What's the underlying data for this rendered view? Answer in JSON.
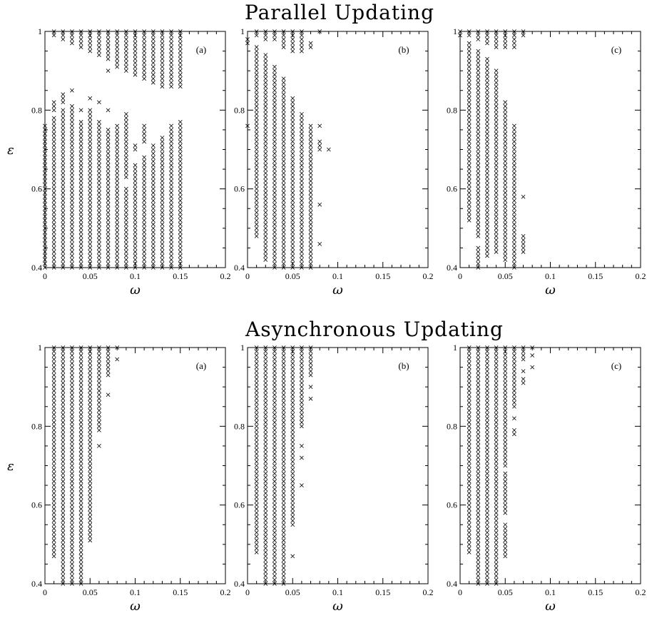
{
  "rows": [
    {
      "title": "Parallel Updating"
    },
    {
      "title": "Asynchronous Updating"
    }
  ],
  "axes": {
    "xlabel": "ω",
    "ylabel": "ε",
    "xlim": [
      0,
      0.2
    ],
    "ylim": [
      0.4,
      1.0
    ],
    "xticks": [
      0,
      0.05,
      0.1,
      0.15,
      0.2
    ],
    "xtick_labels": [
      "0",
      "0.05",
      "0.1",
      "0.15",
      "0.2"
    ],
    "yticks": [
      0.4,
      0.6,
      0.8,
      1.0
    ],
    "ytick_labels": [
      "0.4",
      "0.6",
      "0.8",
      "1"
    ]
  },
  "chart_data": [
    {
      "type": "scatter",
      "row": 0,
      "col": 0,
      "panel_label": "(a)",
      "marker": "×",
      "x_step": 0.01,
      "y_step": 0.01,
      "columns": [
        {
          "x": 0.0,
          "ranges": [
            [
              0.4,
              0.76
            ]
          ]
        },
        {
          "x": 0.01,
          "ranges": [
            [
              0.4,
              0.78
            ],
            [
              0.8,
              0.82
            ],
            [
              0.99,
              1.0
            ]
          ]
        },
        {
          "x": 0.02,
          "ranges": [
            [
              0.4,
              0.8
            ],
            [
              0.82,
              0.84
            ],
            [
              0.98,
              1.0
            ]
          ]
        },
        {
          "x": 0.03,
          "ranges": [
            [
              0.4,
              0.81
            ],
            [
              0.85,
              0.85
            ],
            [
              0.97,
              1.0
            ]
          ]
        },
        {
          "x": 0.04,
          "ranges": [
            [
              0.4,
              0.77
            ],
            [
              0.8,
              0.8
            ],
            [
              0.96,
              1.0
            ]
          ]
        },
        {
          "x": 0.05,
          "ranges": [
            [
              0.4,
              0.8
            ],
            [
              0.83,
              0.83
            ],
            [
              0.95,
              1.0
            ]
          ]
        },
        {
          "x": 0.06,
          "ranges": [
            [
              0.4,
              0.77
            ],
            [
              0.82,
              0.82
            ],
            [
              0.94,
              1.0
            ]
          ]
        },
        {
          "x": 0.07,
          "ranges": [
            [
              0.4,
              0.75
            ],
            [
              0.8,
              0.8
            ],
            [
              0.9,
              0.9
            ],
            [
              0.93,
              1.0
            ]
          ]
        },
        {
          "x": 0.08,
          "ranges": [
            [
              0.4,
              0.76
            ],
            [
              0.91,
              1.0
            ]
          ]
        },
        {
          "x": 0.09,
          "ranges": [
            [
              0.4,
              0.6
            ],
            [
              0.63,
              0.79
            ],
            [
              0.9,
              1.0
            ]
          ]
        },
        {
          "x": 0.1,
          "ranges": [
            [
              0.4,
              0.66
            ],
            [
              0.7,
              0.71
            ],
            [
              0.89,
              1.0
            ]
          ]
        },
        {
          "x": 0.11,
          "ranges": [
            [
              0.4,
              0.68
            ],
            [
              0.72,
              0.76
            ],
            [
              0.88,
              1.0
            ]
          ]
        },
        {
          "x": 0.12,
          "ranges": [
            [
              0.4,
              0.71
            ],
            [
              0.87,
              1.0
            ]
          ]
        },
        {
          "x": 0.13,
          "ranges": [
            [
              0.4,
              0.73
            ],
            [
              0.86,
              1.0
            ]
          ]
        },
        {
          "x": 0.14,
          "ranges": [
            [
              0.4,
              0.76
            ],
            [
              0.86,
              1.0
            ]
          ]
        },
        {
          "x": 0.15,
          "ranges": [
            [
              0.4,
              0.77
            ],
            [
              0.86,
              1.0
            ]
          ]
        }
      ]
    },
    {
      "type": "scatter",
      "row": 0,
      "col": 1,
      "panel_label": "(b)",
      "marker": "×",
      "x_step": 0.01,
      "y_step": 0.01,
      "columns": [
        {
          "x": 0.0,
          "ranges": [
            [
              0.76,
              0.76
            ],
            [
              0.97,
              0.98
            ]
          ]
        },
        {
          "x": 0.01,
          "ranges": [
            [
              0.48,
              0.96
            ],
            [
              0.99,
              1.0
            ]
          ]
        },
        {
          "x": 0.02,
          "ranges": [
            [
              0.42,
              0.94
            ],
            [
              0.98,
              1.0
            ]
          ]
        },
        {
          "x": 0.03,
          "ranges": [
            [
              0.4,
              0.91
            ],
            [
              0.98,
              1.0
            ]
          ]
        },
        {
          "x": 0.04,
          "ranges": [
            [
              0.4,
              0.88
            ],
            [
              0.96,
              1.0
            ]
          ]
        },
        {
          "x": 0.05,
          "ranges": [
            [
              0.4,
              0.83
            ],
            [
              0.95,
              1.0
            ]
          ]
        },
        {
          "x": 0.06,
          "ranges": [
            [
              0.4,
              0.79
            ],
            [
              0.95,
              1.0
            ]
          ]
        },
        {
          "x": 0.07,
          "ranges": [
            [
              0.4,
              0.76
            ],
            [
              0.96,
              0.97
            ]
          ]
        },
        {
          "x": 0.08,
          "ranges": [
            [
              0.46,
              0.46
            ],
            [
              0.56,
              0.56
            ],
            [
              0.7,
              0.72
            ],
            [
              0.76,
              0.76
            ],
            [
              1.0,
              1.0
            ]
          ]
        },
        {
          "x": 0.09,
          "ranges": [
            [
              0.7,
              0.7
            ]
          ]
        }
      ]
    },
    {
      "type": "scatter",
      "row": 0,
      "col": 2,
      "panel_label": "(c)",
      "marker": "×",
      "x_step": 0.01,
      "y_step": 0.01,
      "columns": [
        {
          "x": 0.0,
          "ranges": [
            [
              0.99,
              1.0
            ]
          ]
        },
        {
          "x": 0.01,
          "ranges": [
            [
              0.52,
              0.97
            ],
            [
              0.99,
              1.0
            ]
          ]
        },
        {
          "x": 0.02,
          "ranges": [
            [
              0.4,
              0.45
            ],
            [
              0.48,
              0.95
            ],
            [
              0.98,
              1.0
            ]
          ]
        },
        {
          "x": 0.03,
          "ranges": [
            [
              0.43,
              0.93
            ],
            [
              0.97,
              1.0
            ]
          ]
        },
        {
          "x": 0.04,
          "ranges": [
            [
              0.44,
              0.9
            ],
            [
              0.96,
              1.0
            ]
          ]
        },
        {
          "x": 0.05,
          "ranges": [
            [
              0.42,
              0.82
            ],
            [
              0.96,
              1.0
            ]
          ]
        },
        {
          "x": 0.06,
          "ranges": [
            [
              0.4,
              0.76
            ],
            [
              0.96,
              1.0
            ]
          ]
        },
        {
          "x": 0.07,
          "ranges": [
            [
              0.44,
              0.48
            ],
            [
              0.58,
              0.58
            ],
            [
              0.99,
              1.0
            ]
          ]
        }
      ]
    },
    {
      "type": "scatter",
      "row": 1,
      "col": 0,
      "panel_label": "(a)",
      "marker": "×",
      "x_step": 0.01,
      "y_step": 0.01,
      "columns": [
        {
          "x": 0.01,
          "ranges": [
            [
              0.47,
              1.0
            ]
          ]
        },
        {
          "x": 0.02,
          "ranges": [
            [
              0.4,
              1.0
            ]
          ]
        },
        {
          "x": 0.03,
          "ranges": [
            [
              0.4,
              1.0
            ]
          ]
        },
        {
          "x": 0.04,
          "ranges": [
            [
              0.4,
              1.0
            ]
          ]
        },
        {
          "x": 0.05,
          "ranges": [
            [
              0.51,
              1.0
            ]
          ]
        },
        {
          "x": 0.06,
          "ranges": [
            [
              0.75,
              0.75
            ],
            [
              0.79,
              1.0
            ]
          ]
        },
        {
          "x": 0.07,
          "ranges": [
            [
              0.88,
              0.88
            ],
            [
              0.93,
              1.0
            ]
          ]
        },
        {
          "x": 0.08,
          "ranges": [
            [
              0.97,
              0.97
            ],
            [
              1.0,
              1.0
            ]
          ]
        }
      ]
    },
    {
      "type": "scatter",
      "row": 1,
      "col": 1,
      "panel_label": "(b)",
      "marker": "×",
      "x_step": 0.01,
      "y_step": 0.01,
      "columns": [
        {
          "x": 0.01,
          "ranges": [
            [
              0.48,
              1.0
            ]
          ]
        },
        {
          "x": 0.02,
          "ranges": [
            [
              0.4,
              1.0
            ]
          ]
        },
        {
          "x": 0.03,
          "ranges": [
            [
              0.4,
              1.0
            ]
          ]
        },
        {
          "x": 0.04,
          "ranges": [
            [
              0.4,
              1.0
            ]
          ]
        },
        {
          "x": 0.05,
          "ranges": [
            [
              0.47,
              0.47
            ],
            [
              0.55,
              1.0
            ]
          ]
        },
        {
          "x": 0.06,
          "ranges": [
            [
              0.65,
              0.65
            ],
            [
              0.72,
              0.72
            ],
            [
              0.75,
              0.75
            ],
            [
              0.8,
              1.0
            ]
          ]
        },
        {
          "x": 0.07,
          "ranges": [
            [
              0.87,
              0.87
            ],
            [
              0.9,
              0.9
            ],
            [
              0.93,
              1.0
            ]
          ]
        }
      ]
    },
    {
      "type": "scatter",
      "row": 1,
      "col": 2,
      "panel_label": "(c)",
      "marker": "×",
      "x_step": 0.01,
      "y_step": 0.01,
      "columns": [
        {
          "x": 0.01,
          "ranges": [
            [
              0.48,
              1.0
            ]
          ]
        },
        {
          "x": 0.02,
          "ranges": [
            [
              0.4,
              1.0
            ]
          ]
        },
        {
          "x": 0.03,
          "ranges": [
            [
              0.4,
              1.0
            ]
          ]
        },
        {
          "x": 0.04,
          "ranges": [
            [
              0.4,
              1.0
            ]
          ]
        },
        {
          "x": 0.05,
          "ranges": [
            [
              0.47,
              0.55
            ],
            [
              0.58,
              0.68
            ],
            [
              0.7,
              1.0
            ]
          ]
        },
        {
          "x": 0.06,
          "ranges": [
            [
              0.78,
              0.79
            ],
            [
              0.82,
              0.82
            ],
            [
              0.85,
              1.0
            ]
          ]
        },
        {
          "x": 0.07,
          "ranges": [
            [
              0.91,
              0.92
            ],
            [
              0.94,
              0.94
            ],
            [
              0.97,
              1.0
            ]
          ]
        },
        {
          "x": 0.08,
          "ranges": [
            [
              0.95,
              0.95
            ],
            [
              0.98,
              0.98
            ],
            [
              1.0,
              1.0
            ]
          ]
        }
      ]
    }
  ]
}
